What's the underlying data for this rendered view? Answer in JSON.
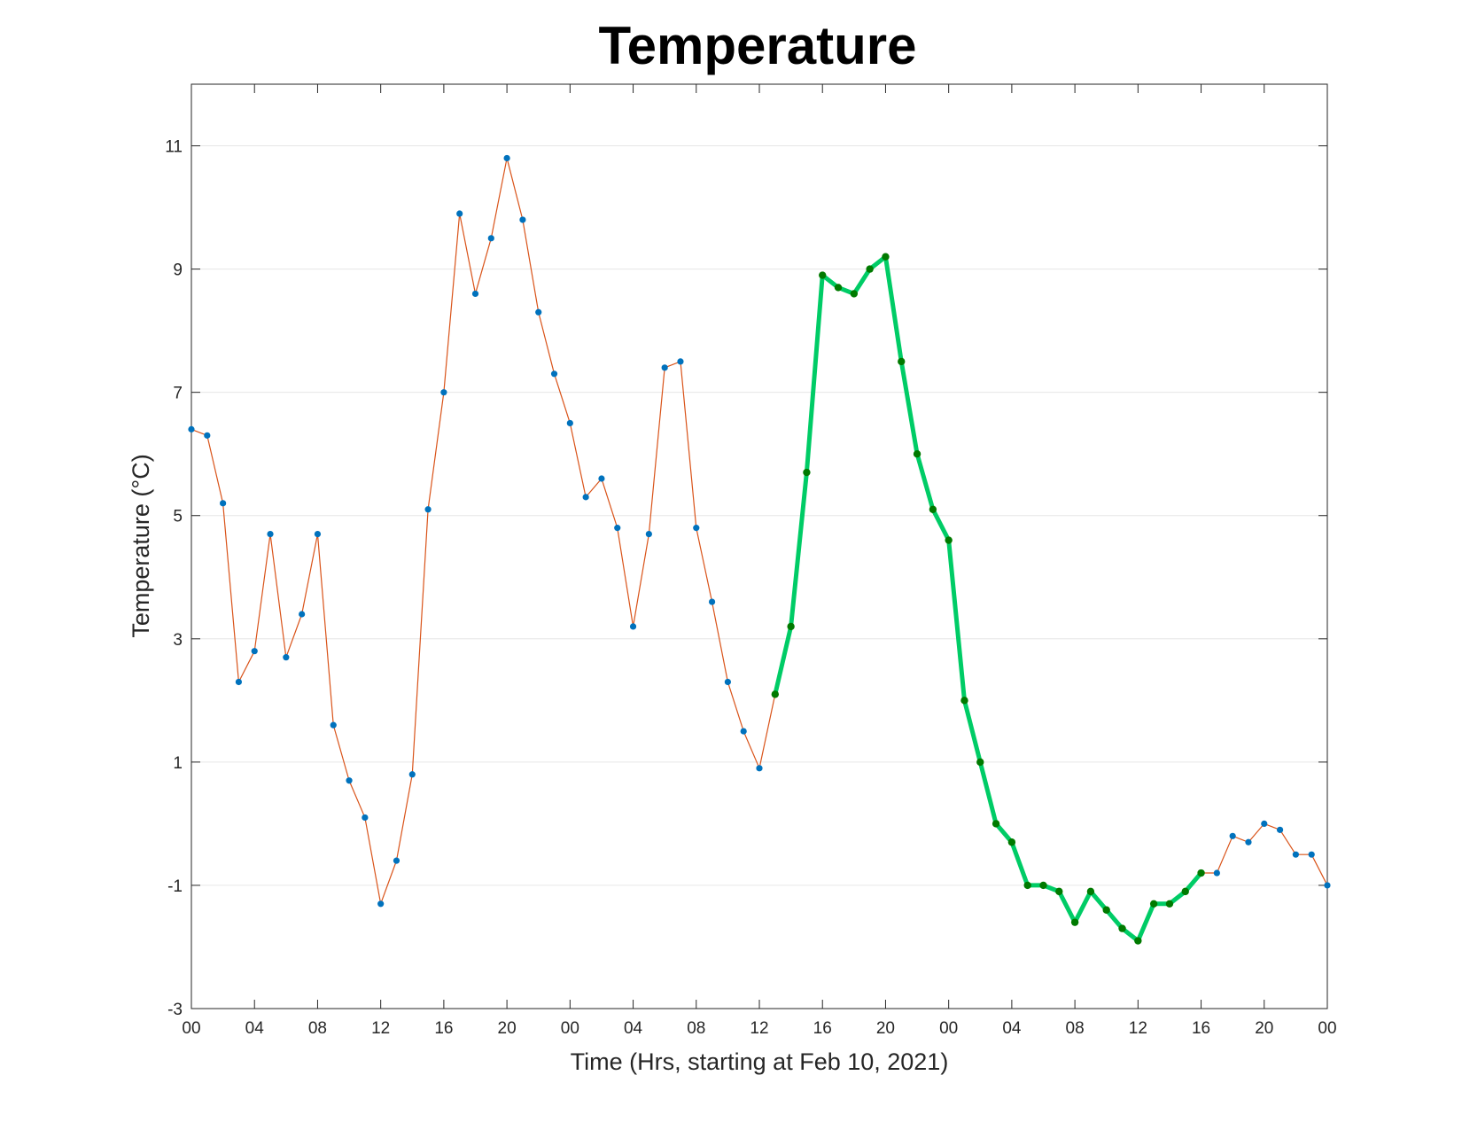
{
  "chart_data": {
    "type": "line",
    "title": "Temperature",
    "xlabel": "Time (Hrs, starting at Feb 10, 2021)",
    "ylabel": "Temperature (°C)",
    "xlim": [
      0,
      72
    ],
    "ylim": [
      -3,
      12
    ],
    "x_tick_hours": [
      0,
      4,
      8,
      12,
      16,
      20,
      24,
      28,
      32,
      36,
      40,
      44,
      48,
      52,
      56,
      60,
      64,
      68,
      72
    ],
    "x_tick_labels": [
      "00",
      "04",
      "08",
      "12",
      "16",
      "20",
      "00",
      "04",
      "08",
      "12",
      "16",
      "20",
      "00",
      "04",
      "08",
      "12",
      "16",
      "20",
      "00"
    ],
    "y_ticks": [
      -3,
      -1,
      1,
      3,
      5,
      7,
      9,
      11
    ],
    "y_tick_labels": [
      "-3",
      "-1",
      "1",
      "3",
      "5",
      "7",
      "9",
      "11"
    ],
    "grid": true,
    "colors": {
      "series_line": "#d95319",
      "series_marker": "#0072bd",
      "highlight_line": "#00cc66",
      "highlight_marker": "#007a00",
      "grid": "#e6e6e6",
      "axis": "#262626"
    },
    "series": [
      {
        "x": [
          0,
          1,
          2,
          3,
          4,
          5,
          6,
          7,
          8,
          9,
          10,
          11,
          12,
          13,
          14,
          15,
          16,
          17,
          18,
          19,
          20,
          21,
          22,
          23,
          24,
          25,
          26,
          27,
          28,
          29,
          30,
          31,
          32,
          33,
          34,
          35,
          36,
          37,
          38,
          39,
          40,
          41,
          42,
          43,
          44,
          45,
          46,
          47,
          48,
          49,
          50,
          51,
          52,
          53,
          54,
          55,
          56,
          57,
          58,
          59,
          60,
          61,
          62,
          63,
          64,
          65,
          66,
          67,
          68,
          69,
          70,
          71,
          72
        ],
        "y": [
          6.4,
          6.3,
          5.2,
          2.3,
          2.8,
          4.7,
          2.7,
          3.4,
          4.7,
          1.6,
          0.7,
          0.1,
          -1.3,
          -0.6,
          0.8,
          5.1,
          7.0,
          9.9,
          8.6,
          9.5,
          10.8,
          9.8,
          8.3,
          7.3,
          6.5,
          5.3,
          5.6,
          4.8,
          3.2,
          4.7,
          7.4,
          7.5,
          4.8,
          3.6,
          2.3,
          1.5,
          0.9,
          2.1,
          3.2,
          5.7,
          8.9,
          8.7,
          8.6,
          9.0,
          9.2,
          7.5,
          6.0,
          5.1,
          4.6,
          2.0,
          1.0,
          0.0,
          -0.3,
          -1.0,
          -1.0,
          -1.1,
          -1.6,
          -1.1,
          -1.4,
          -1.7,
          -1.9,
          -1.3,
          -1.3,
          -1.1,
          -0.8,
          -0.8,
          -0.2,
          -0.3,
          0.0,
          -0.1,
          -0.5,
          -0.5,
          -1.0
        ]
      }
    ],
    "highlight_range": [
      37,
      64
    ]
  }
}
